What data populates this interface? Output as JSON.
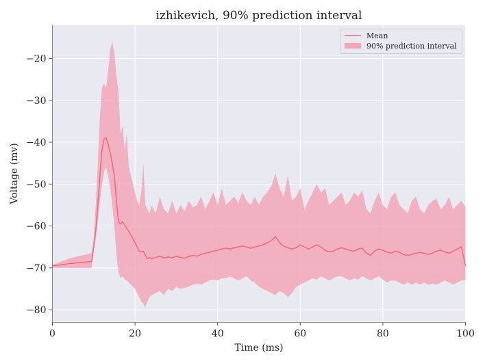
{
  "chart_data": {
    "type": "line",
    "title": "izhikevich, 90% prediction interval",
    "xlabel": "Time (ms)",
    "ylabel": "Voltage (mv)",
    "xlim": [
      0,
      100
    ],
    "ylim": [
      -83,
      -12
    ],
    "xticks": [
      0,
      20,
      40,
      60,
      80,
      100
    ],
    "yticks": [
      -80,
      -70,
      -60,
      -50,
      -40,
      -30,
      -20
    ],
    "grid": true,
    "legend_position": "top-right",
    "legend": [
      "Mean",
      "90% prediction interval"
    ],
    "colors": {
      "mean": "#f46a80",
      "band": "#f2a7b8",
      "plot_bg": "#e8e9f1",
      "grid": "#ffffff"
    },
    "series": [
      {
        "name": "Mean",
        "kind": "line",
        "x": [
          0,
          2,
          4,
          6,
          8,
          9.5,
          10,
          10.5,
          11,
          11.5,
          12,
          12.5,
          13,
          13.5,
          14,
          14.5,
          15,
          15.5,
          16,
          16.5,
          17,
          17.5,
          18,
          18.5,
          19,
          19.5,
          20,
          20.5,
          21,
          21.5,
          22,
          22.5,
          23,
          23.5,
          24,
          25,
          26,
          27,
          28,
          29,
          30,
          31,
          32,
          33,
          34,
          35,
          36,
          37,
          38,
          39,
          40,
          41,
          42,
          43,
          44,
          45,
          46,
          47,
          48,
          49,
          50,
          51,
          52,
          53,
          54,
          55,
          56,
          57,
          58,
          59,
          60,
          61,
          62,
          63,
          64,
          65,
          66,
          67,
          68,
          69,
          70,
          71,
          72,
          73,
          74,
          75,
          76,
          77,
          78,
          79,
          80,
          81,
          82,
          83,
          84,
          85,
          86,
          87,
          88,
          89,
          90,
          91,
          92,
          93,
          94,
          95,
          96,
          97,
          98,
          99,
          100
        ],
        "y": [
          -69.5,
          -69.3,
          -69.0,
          -68.8,
          -68.6,
          -68.5,
          -65.0,
          -61.0,
          -55.0,
          -48.0,
          -42.0,
          -39.2,
          -39.0,
          -40.5,
          -42.5,
          -45.0,
          -48.0,
          -54.0,
          -59.0,
          -59.5,
          -59.0,
          -59.8,
          -60.5,
          -61.3,
          -62.2,
          -63.0,
          -64.0,
          -65.0,
          -66.0,
          -66.2,
          -66.0,
          -67.0,
          -67.8,
          -67.5,
          -67.8,
          -67.5,
          -67.2,
          -67.6,
          -67.4,
          -67.6,
          -67.2,
          -67.5,
          -67.7,
          -67.3,
          -67.0,
          -67.2,
          -66.8,
          -66.5,
          -66.3,
          -66.0,
          -65.8,
          -65.5,
          -65.3,
          -65.5,
          -65.2,
          -65.0,
          -64.8,
          -65.0,
          -65.3,
          -65.0,
          -64.8,
          -64.5,
          -64.0,
          -63.5,
          -62.5,
          -64.0,
          -64.8,
          -65.2,
          -65.5,
          -65.2,
          -64.5,
          -65.0,
          -65.5,
          -65.0,
          -64.5,
          -65.0,
          -65.8,
          -66.2,
          -66.0,
          -65.5,
          -65.2,
          -65.5,
          -65.8,
          -66.0,
          -65.5,
          -65.3,
          -66.5,
          -67.0,
          -66.0,
          -65.5,
          -65.8,
          -66.2,
          -66.5,
          -66.0,
          -66.3,
          -66.8,
          -67.0,
          -66.8,
          -66.5,
          -66.3,
          -66.5,
          -66.8,
          -66.5,
          -66.0,
          -65.8,
          -66.2,
          -66.5,
          -66.0,
          -65.5,
          -65.0,
          -69.5
        ]
      },
      {
        "name": "90% prediction interval",
        "kind": "band",
        "x": [
          0,
          2,
          4,
          6,
          8,
          9.5,
          10,
          10.5,
          11,
          11.5,
          12,
          12.5,
          13,
          13.5,
          14,
          14.5,
          15,
          15.5,
          16,
          16.5,
          17,
          17.5,
          18,
          18.5,
          19,
          19.5,
          20,
          20.5,
          21,
          21.5,
          22,
          22.5,
          23,
          23.5,
          24,
          25,
          26,
          27,
          28,
          29,
          30,
          31,
          32,
          33,
          34,
          35,
          36,
          37,
          38,
          39,
          40,
          41,
          42,
          43,
          44,
          45,
          46,
          47,
          48,
          49,
          50,
          51,
          52,
          53,
          54,
          55,
          56,
          57,
          58,
          59,
          60,
          61,
          62,
          63,
          64,
          65,
          66,
          67,
          68,
          69,
          70,
          71,
          72,
          73,
          74,
          75,
          76,
          77,
          78,
          79,
          80,
          81,
          82,
          83,
          84,
          85,
          86,
          87,
          88,
          89,
          90,
          91,
          92,
          93,
          94,
          95,
          96,
          97,
          98,
          99,
          100
        ],
        "lower": [
          -70.0,
          -70.0,
          -70.0,
          -70.0,
          -70.0,
          -70.0,
          -66.0,
          -63.0,
          -59.0,
          -54.0,
          -50.0,
          -47.0,
          -46.0,
          -48.0,
          -51.0,
          -55.0,
          -60.0,
          -67.0,
          -71.0,
          -72.5,
          -72.0,
          -72.8,
          -73.0,
          -73.5,
          -74.0,
          -74.5,
          -75.0,
          -76.0,
          -77.0,
          -78.0,
          -78.5,
          -79.5,
          -78.0,
          -77.0,
          -76.5,
          -76.0,
          -75.5,
          -76.5,
          -75.0,
          -75.5,
          -74.5,
          -75.0,
          -74.8,
          -74.5,
          -74.0,
          -73.8,
          -74.0,
          -73.5,
          -73.0,
          -72.8,
          -73.0,
          -72.5,
          -72.5,
          -72.0,
          -72.5,
          -73.0,
          -72.5,
          -72.0,
          -73.0,
          -73.5,
          -74.5,
          -75.0,
          -75.5,
          -76.0,
          -76.5,
          -75.5,
          -76.0,
          -77.0,
          -76.0,
          -74.5,
          -74.0,
          -73.5,
          -73.0,
          -72.5,
          -72.8,
          -72.0,
          -72.5,
          -73.0,
          -72.5,
          -72.0,
          -72.0,
          -72.5,
          -73.0,
          -72.5,
          -72.8,
          -72.0,
          -72.5,
          -73.0,
          -72.5,
          -72.0,
          -72.8,
          -73.5,
          -73.0,
          -73.0,
          -73.5,
          -74.0,
          -73.5,
          -74.0,
          -73.5,
          -74.0,
          -73.5,
          -74.0,
          -73.8,
          -74.0,
          -73.5,
          -73.0,
          -73.5,
          -74.0,
          -73.5,
          -73.0,
          -73.0
        ],
        "upper": [
          -69.3,
          -68.5,
          -67.8,
          -67.3,
          -66.8,
          -66.5,
          -63.0,
          -55.0,
          -45.0,
          -34.0,
          -27.0,
          -26.0,
          -27.0,
          -23.0,
          -18.0,
          -16.0,
          -19.0,
          -24.0,
          -28.0,
          -38.0,
          -36.0,
          -42.0,
          -38.0,
          -46.0,
          -48.0,
          -50.0,
          -52.0,
          -54.0,
          -55.0,
          -52.0,
          -45.0,
          -55.0,
          -56.0,
          -57.0,
          -55.0,
          -57.0,
          -53.0,
          -56.0,
          -57.0,
          -54.0,
          -57.0,
          -55.0,
          -56.5,
          -54.0,
          -55.5,
          -55.0,
          -53.0,
          -56.0,
          -54.0,
          -52.0,
          -55.0,
          -51.0,
          -55.0,
          -54.0,
          -53.0,
          -54.5,
          -52.0,
          -54.0,
          -55.0,
          -53.0,
          -55.0,
          -53.0,
          -52.0,
          -50.5,
          -47.5,
          -51.0,
          -53.0,
          -48.0,
          -54.0,
          -53.0,
          -51.0,
          -56.0,
          -54.0,
          -52.0,
          -50.0,
          -52.0,
          -51.0,
          -55.0,
          -54.0,
          -53.0,
          -52.0,
          -55.0,
          -54.0,
          -52.0,
          -53.0,
          -51.5,
          -56.0,
          -57.0,
          -54.0,
          -52.0,
          -55.0,
          -56.0,
          -53.0,
          -52.0,
          -55.0,
          -56.0,
          -57.0,
          -54.0,
          -53.0,
          -56.0,
          -57.0,
          -55.0,
          -54.0,
          -53.5,
          -56.0,
          -55.0,
          -53.0,
          -56.0,
          -55.0,
          -54.0,
          -55.5
        ]
      }
    ]
  }
}
